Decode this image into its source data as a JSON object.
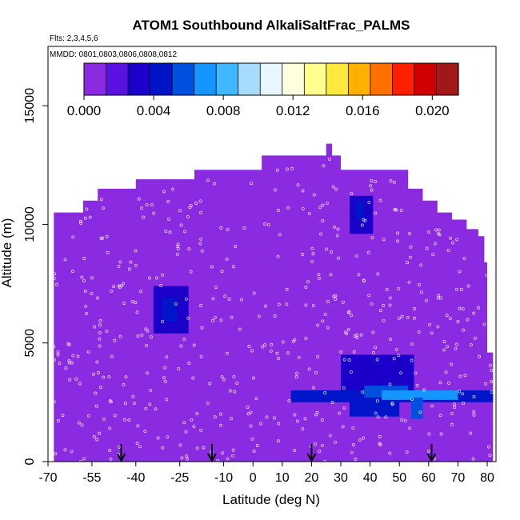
{
  "chart_data": {
    "type": "heatmap",
    "title": "ATOM1 Southbound AlkaliSaltFrac_PALMS",
    "subtitle_flights": "Flts: 2,3,4,5,6",
    "subtitle_dates": "MMDD: 0801,0803,0806,0808,0812",
    "xlabel": "Latitude (deg N)",
    "ylabel": "Altitude (m)",
    "xlim": [
      -70,
      83
    ],
    "ylim": [
      0,
      17500
    ],
    "x_ticks": [
      -70,
      -55,
      -40,
      -25,
      -10,
      0,
      10,
      20,
      30,
      40,
      50,
      60,
      70,
      80
    ],
    "y_ticks": [
      0,
      5000,
      10000,
      15000
    ],
    "colorbar": {
      "min": 0.0,
      "max": 0.0215,
      "tick_values": [
        0.0,
        0.004,
        0.008,
        0.012,
        0.016,
        0.02
      ],
      "tick_labels": [
        "0.000",
        "0.004",
        "0.008",
        "0.012",
        "0.016",
        "0.020"
      ],
      "colors": [
        "#8a2be2",
        "#5a12e0",
        "#1a00c8",
        "#0014c8",
        "#0050e0",
        "#1495ff",
        "#3fb8ff",
        "#a8dcff",
        "#e8f6ff",
        "#ffffe0",
        "#ffff90",
        "#ffe840",
        "#ffb000",
        "#ff7000",
        "#ff2000",
        "#d00000",
        "#a01818"
      ]
    },
    "background_value": 0.0005,
    "coverage_profile": {
      "lat": [
        -68,
        -63,
        -58,
        -53,
        -45,
        -40,
        -20,
        3,
        25,
        27,
        30,
        53,
        58,
        63,
        68,
        73,
        77,
        79,
        80,
        82
      ],
      "alt_top": [
        10500,
        10500,
        11000,
        11500,
        11500,
        11900,
        12300,
        12900,
        13400,
        12900,
        12300,
        11500,
        11000,
        10500,
        10200,
        9800,
        9500,
        8400,
        4600,
        4600
      ]
    },
    "regions": [
      {
        "lat": [
          -34,
          -22
        ],
        "alt": [
          5400,
          7400
        ],
        "value": 0.0035
      },
      {
        "lat": [
          -31,
          -26
        ],
        "alt": [
          5900,
          6900
        ],
        "value": 0.0045
      },
      {
        "lat": [
          33,
          41
        ],
        "alt": [
          9600,
          11200
        ],
        "value": 0.0035
      },
      {
        "lat": [
          35,
          38
        ],
        "alt": [
          10200,
          11000
        ],
        "value": 0.005
      },
      {
        "lat": [
          13,
          90
        ],
        "alt": [
          2500,
          3000
        ],
        "value": 0.004
      },
      {
        "lat": [
          30,
          55
        ],
        "alt": [
          3000,
          4500
        ],
        "value": 0.0035
      },
      {
        "lat": [
          33,
          50
        ],
        "alt": [
          1900,
          2800
        ],
        "value": 0.004
      },
      {
        "lat": [
          38,
          53
        ],
        "alt": [
          2700,
          3200
        ],
        "value": 0.006
      },
      {
        "lat": [
          44,
          60
        ],
        "alt": [
          2600,
          3000
        ],
        "value": 0.0075
      },
      {
        "lat": [
          55,
          70
        ],
        "alt": [
          2600,
          3000
        ],
        "value": 0.0065
      },
      {
        "lat": [
          54,
          58
        ],
        "alt": [
          1800,
          2700
        ],
        "value": 0.006
      }
    ],
    "flight_dives_lat": [
      -45,
      -14,
      20,
      61
    ]
  }
}
